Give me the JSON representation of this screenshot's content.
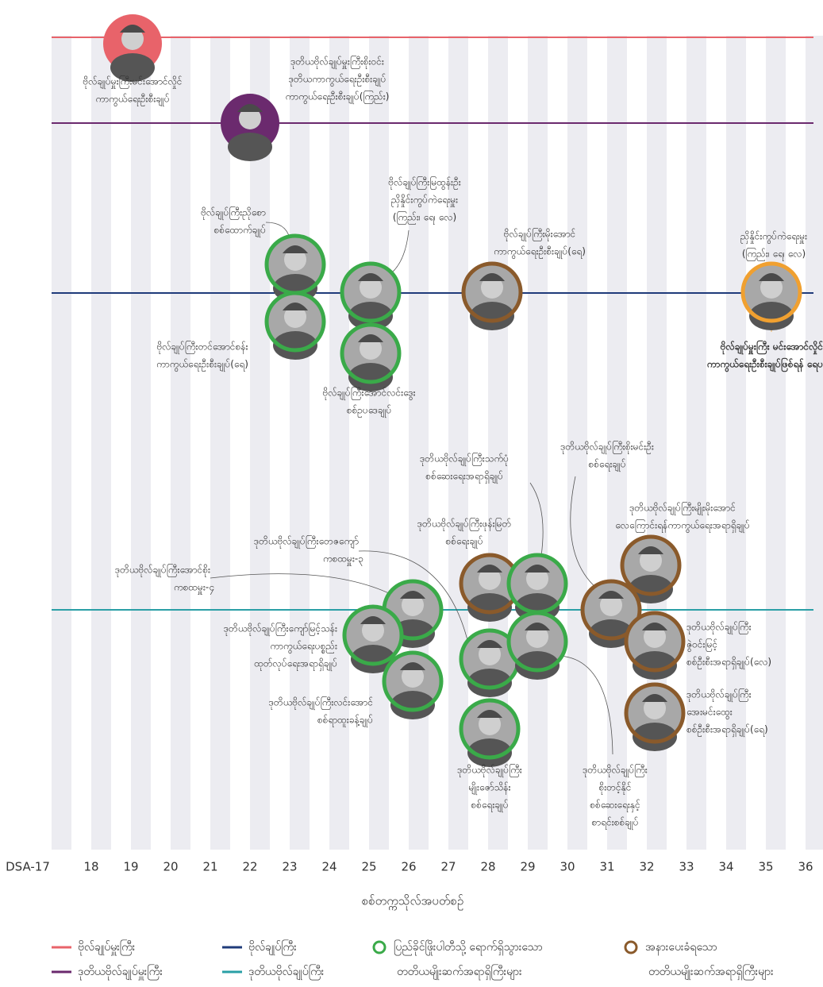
{
  "axis": {
    "ticks": [
      "DSA-17",
      "18",
      "19",
      "20",
      "21",
      "22",
      "23",
      "24",
      "25",
      "26",
      "27",
      "28",
      "29",
      "30",
      "31",
      "32",
      "33",
      "34",
      "35",
      "36"
    ],
    "title": "စစ်တက္ကသိုလ်အပတ်စဉ်"
  },
  "legend": {
    "ranks": [
      {
        "label": "ဗိုလ်ချုပ်မှူးကြီး",
        "color": "#e8636a"
      },
      {
        "label": "ဒုတိယဗိုလ်ချုပ်မှူးကြီး",
        "color": "#6b2a6e"
      },
      {
        "label": "ဗိုလ်ချုပ်ကြီး",
        "color": "#1f3b7a"
      },
      {
        "label": "ဒုတိယဗိုလ်ချုပ်ကြီး",
        "color": "#2a9fa6"
      }
    ],
    "statuses": [
      {
        "label": [
          "ပြည်ခိုင်ဖြိုးပါတီသို့ ရောက်ရှိသွားသော",
          "တတိယမျိုးဆက်အရာရှိကြီးများ"
        ],
        "color": "#3aaa49"
      },
      {
        "label": [
          "အနားပေးခံရသော",
          "တတိယမျိုးဆက်အရာရှိကြီးများ"
        ],
        "color": "#8a5a2b"
      }
    ]
  },
  "photos": [
    {
      "color": "#e8636a"
    },
    {
      "color": "#6b2a6e"
    },
    {
      "color": "#3aaa49"
    },
    {
      "color": "#3aaa49"
    },
    {
      "color": "#3aaa49"
    },
    {
      "color": "#3aaa49"
    },
    {
      "color": "#8a5a2b"
    },
    {
      "color": "#f0a030"
    },
    {
      "color": "#3aaa49"
    },
    {
      "color": "#3aaa49"
    },
    {
      "color": "#3aaa49"
    },
    {
      "color": "#8a5a2b"
    },
    {
      "color": "#3aaa49"
    },
    {
      "color": "#3aaa49"
    },
    {
      "color": "#3aaa49"
    },
    {
      "color": "#3aaa49"
    },
    {
      "color": "#8a5a2b"
    },
    {
      "color": "#8a5a2b"
    },
    {
      "color": "#8a5a2b"
    },
    {
      "color": "#8a5a2b"
    }
  ],
  "captions": [
    {
      "lines": [
        "ဗိုလ်ချုပ်မှူးကြီးမင်းအောင်လှိုင်",
        "ကာကွယ်ရေးဦးစီးချုပ်"
      ]
    },
    {
      "lines": [
        "ဒုတိယဗိုလ်ချုပ်မှူးကြီးစိုးဝင်း",
        "ဒုတိယကာကွယ်ရေးဦးစီးချုပ်",
        "ကာကွယ်ရေးဦးစီးချုပ်(ကြည်း)"
      ]
    },
    {
      "lines": [
        "ဗိုလ်ချုပ်ကြီးညိုစော",
        "စစ်ထောက်ချုပ်"
      ]
    },
    {
      "lines": [
        "ဗိုလ်ချုပ်ကြီးတင်အောင်စန်း",
        "ကာကွယ်ရေးဦးစီးချုပ်(ရေ)"
      ]
    },
    {
      "lines": [
        "ဗိုလ်ချုပ်ကြီးမြထွန်းဦး",
        "ညှိနှိုင်းကွပ်ကဲရေးမှူး",
        "(ကြည်း၊ ရေ၊ လေ)"
      ]
    },
    {
      "lines": [
        "ဗိုလ်ချုပ်ကြီးအောင်လင်းဒွေး",
        "စစ်ဥပဒေချုပ်"
      ]
    },
    {
      "lines": [
        "ဗိုလ်ချုပ်ကြီးမိုးအောင်",
        "ကာကွယ်ရေးဦးစီးချုပ်(ရေ)"
      ]
    },
    {
      "lines": [
        "ညှိနှိုင်းကွပ်ကဲရေးမှူး",
        "(ကြည်း၊ ရေ၊ လေ)"
      ]
    },
    {
      "lines": [
        "ဗိုလ်ချုပ်မှူးကြီး မင်းအောင်လှိုင်",
        "ကာကွယ်ရေးဦးစီးချုပ်ဖြစ်ရန် ရေပ"
      ]
    },
    {
      "lines": [
        "ဒုတိယဗိုလ်ချုပ်ကြီးအောင်စိုး",
        "ကစထမှူး-၄"
      ]
    },
    {
      "lines": [
        "ဒုတိယဗိုလ်ချုပ်ကြီးတေဇကျော်",
        "ကစထမှူး-၃"
      ]
    },
    {
      "lines": [
        "ဒုတိယဗိုလ်ချုပ်ကြီးကျော်မြင့်သန်း",
        "ကာကွယ်ရေးပစ္စည်း",
        "ထုတ်လုပ်ရေးအရာရှိချုပ်"
      ]
    },
    {
      "lines": [
        "ဒုတိယဗိုလ်ချုပ်ကြီးလင်းအောင်",
        "စစ်ရာထူးခန့်ချုပ်"
      ]
    },
    {
      "lines": [
        "ဒုတိယဗိုလ်ချုပ်ကြီးသက်ပုံ",
        "စစ်ဆေးရေးအရာရှိချုပ်"
      ]
    },
    {
      "lines": [
        "ဒုတိယဗိုလ်ချုပ်ကြီးဖုန်းမြတ်",
        "စစ်ရေးချုပ်"
      ]
    },
    {
      "lines": [
        "ဒုတိယဗိုလ်ချုပ်ကြီးစိုးမင်းဦး",
        "စစ်ရေးချုပ်"
      ]
    },
    {
      "lines": [
        "ဒုတိယဗိုလ်ချုပ်ကြီးမျိုးမိုးအောင်",
        "လေကြောင်းရန်ကာကွယ်ရေးအရာရှိချုပ်"
      ]
    },
    {
      "lines": [
        "ဒုတိယဗိုလ်ချုပ်ကြီး",
        "ဇွဲဝင်းမြင့်",
        "စစ်ဦးစီးအရာရှိချုပ်(လေ)"
      ]
    },
    {
      "lines": [
        "ဒုတိယဗိုလ်ချုပ်ကြီး",
        "အေးမင်းထွေး",
        "စစ်ဦးစီးအရာရှိချုပ်(ရေ)"
      ]
    },
    {
      "lines": [
        "ဒုတိယဗိုလ်ချုပ်ကြီး",
        "မျိုးဇော်သိန်း",
        "စစ်ရေးချုပ်"
      ]
    },
    {
      "lines": [
        "ဒုတိယဗိုလ်ချုပ်ကြီး",
        "စိုးတင့်နိုင်",
        "စစ်ဆေးရေးနှင့်",
        "စာရင်းစစ်ချုပ်"
      ]
    }
  ]
}
